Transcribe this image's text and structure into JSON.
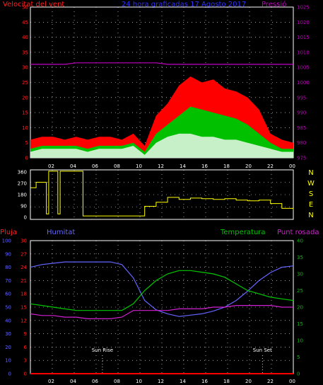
{
  "header": {
    "wind_label": "Velocitat del vent",
    "title": "24 hora graficadas   17 Agosto 2017",
    "pressure_label": "Pressió"
  },
  "colors": {
    "background": "#000000",
    "frame": "#ffffff",
    "grid": "#ffffff",
    "wind_avg": "#ffffff",
    "gust": "#ff0000",
    "wind_green": "#00c000",
    "wind_light": "#c8f0c8",
    "pressure": "#c000c0",
    "direction": "#ffff00",
    "humidity": "#6464ff",
    "temperature": "#00c800",
    "dewpoint": "#d020d0",
    "rain": "#ff0000",
    "left_axis_red": "#ff2020",
    "left_axis_blue": "#6464ff",
    "right_axis_green": "#00c800",
    "title_blue": "#3030ff"
  },
  "time_axis": {
    "ticks": [
      "02",
      "04",
      "06",
      "08",
      "10",
      "12",
      "14",
      "16",
      "18",
      "20",
      "22",
      "00"
    ]
  },
  "chart_data": [
    {
      "type": "area",
      "name": "wind",
      "title": "24 hora graficadas   17 Agosto 2017",
      "x_unit": "hour",
      "xlim": [
        1,
        24
      ],
      "ylabel_left": "Velocitat del vent",
      "ylabel_right": "Pressió",
      "ylim_left": [
        0,
        50
      ],
      "ylim_right": [
        975,
        1025
      ],
      "left_ticks": [
        "50",
        "45",
        "40",
        "35",
        "30",
        "25",
        "20",
        "15",
        "10",
        "5",
        "0"
      ],
      "right_ticks": [
        "1025",
        "1020",
        "1015",
        "1010",
        "1005",
        "1000",
        "995",
        "990",
        "985",
        "980",
        "975"
      ],
      "grid": true,
      "x": [
        1,
        2,
        3,
        4,
        5,
        6,
        7,
        8,
        9,
        10,
        11,
        12,
        13,
        14,
        15,
        16,
        17,
        18,
        19,
        20,
        21,
        22,
        23,
        24
      ],
      "gust": [
        6,
        7,
        7,
        6,
        7,
        6,
        7,
        7,
        6,
        8,
        4,
        14,
        18,
        24,
        27,
        25,
        26,
        23,
        22,
        20,
        16,
        8,
        6,
        5
      ],
      "avg_green": [
        3,
        4,
        4,
        4,
        4,
        3,
        4,
        4,
        4,
        5,
        2,
        8,
        11,
        14,
        17,
        16,
        15,
        14,
        13,
        11,
        8,
        5,
        3,
        3
      ],
      "avg_light": [
        2,
        3,
        3,
        3,
        3,
        2,
        3,
        3,
        3,
        4,
        1,
        5,
        7,
        8,
        8,
        7,
        7,
        6,
        6,
        5,
        4,
        3,
        2,
        2
      ],
      "pressure": [
        1006,
        1006,
        1006,
        1006,
        1006.5,
        1006.5,
        1006.5,
        1006.5,
        1006.5,
        1006.5,
        1006.5,
        1006.5,
        1006,
        1006,
        1006,
        1006,
        1006,
        1006,
        1006,
        1006,
        1006,
        1006,
        1006,
        1006
      ]
    },
    {
      "type": "line",
      "name": "wind-direction",
      "x_unit": "hour",
      "xlim": [
        1,
        24
      ],
      "ylim": [
        0,
        360
      ],
      "left_ticks": [
        "360",
        "270",
        "180",
        "90",
        "0"
      ],
      "right_ticks": [
        "N",
        "W",
        "S",
        "E",
        "N"
      ],
      "grid": true,
      "x": [
        1,
        1.5,
        2,
        2.4,
        2.6,
        3,
        3.4,
        3.6,
        4,
        5,
        5.6,
        6,
        7,
        8,
        9,
        10,
        10.5,
        11,
        12,
        13,
        14,
        15,
        16,
        17,
        18,
        19,
        20,
        21,
        22,
        23,
        24
      ],
      "y": [
        230,
        270,
        270,
        40,
        350,
        350,
        40,
        350,
        350,
        350,
        25,
        25,
        25,
        25,
        25,
        25,
        25,
        95,
        125,
        160,
        145,
        155,
        150,
        145,
        150,
        140,
        135,
        140,
        115,
        80,
        70
      ]
    },
    {
      "type": "line",
      "name": "climate",
      "x_unit": "hour",
      "xlim": [
        1,
        24
      ],
      "left_labels": [
        "Pluja",
        "Humitat"
      ],
      "right_labels": [
        "Temperatura",
        "Punt rosada"
      ],
      "left_outer_ticks": [
        "100",
        "90",
        "80",
        "70",
        "60",
        "50",
        "40",
        "30",
        "20",
        "10",
        "0"
      ],
      "left_inner_ticks": [
        "30",
        "27",
        "24",
        "21",
        "18",
        "15",
        "12",
        "9",
        "6",
        "3",
        "0"
      ],
      "right_ticks": [
        "40",
        "35",
        "30",
        "25",
        "20",
        "15",
        "10",
        "5",
        "0"
      ],
      "grid": true,
      "x": [
        1,
        2,
        3,
        4,
        5,
        6,
        7,
        8,
        9,
        10,
        11,
        12,
        13,
        14,
        15,
        16,
        17,
        18,
        19,
        20,
        21,
        22,
        23,
        24
      ],
      "series": [
        {
          "name": "Humitat",
          "values": [
            80,
            82,
            83,
            84,
            84,
            84,
            84,
            84,
            82,
            72,
            55,
            48,
            45,
            43,
            44,
            45,
            47,
            50,
            55,
            62,
            70,
            76,
            80,
            81
          ]
        },
        {
          "name": "Temperatura",
          "values": [
            21,
            20.5,
            20,
            19.5,
            19,
            19,
            19,
            19,
            19,
            21,
            25,
            28,
            30,
            31,
            31,
            30.5,
            30,
            29,
            27,
            25,
            24,
            23,
            22.5,
            22
          ]
        },
        {
          "name": "Punt rosada",
          "values": [
            18,
            17.5,
            17.5,
            17,
            17,
            16.5,
            16.5,
            16.5,
            17,
            19,
            19,
            19,
            19,
            19.5,
            19.5,
            19.5,
            20,
            20,
            20.5,
            20.5,
            20.5,
            20.5,
            20,
            20
          ]
        },
        {
          "name": "Pluja",
          "values": [
            0,
            0,
            0,
            0,
            0,
            0,
            0,
            0,
            0,
            0,
            0,
            0,
            0,
            0,
            0,
            0,
            0,
            0,
            0,
            0,
            0,
            0,
            0,
            0
          ]
        }
      ],
      "annotations": [
        {
          "label": "Sun Rise",
          "x": 7.3
        },
        {
          "label": "Sun Set",
          "x": 21.3
        }
      ]
    }
  ]
}
